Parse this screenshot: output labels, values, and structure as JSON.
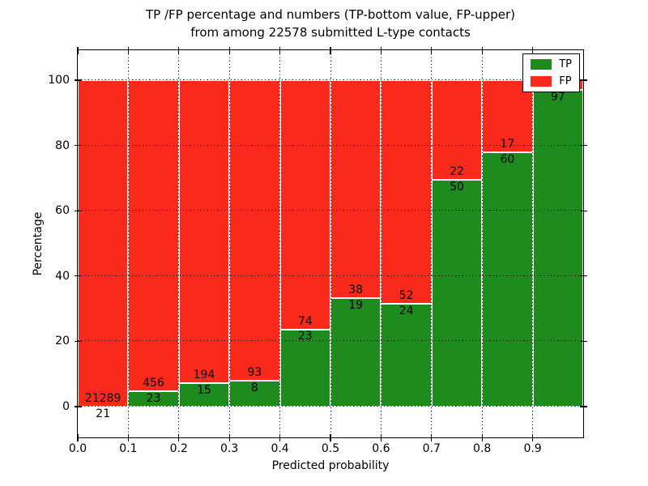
{
  "title": {
    "line1": "TP /FP percentage and numbers (TP-bottom value, FP-upper)",
    "line2": "from among 22578 submitted L-type contacts"
  },
  "colors": {
    "tp": "#1e8b1e",
    "fp": "#f92a1c",
    "grid": "#000000",
    "bar_edge": "#ffffff"
  },
  "chart_data": {
    "type": "bar",
    "stacked": true,
    "unit": "percent of each probability bin, TP+FP stacked to 100%",
    "title": "TP /FP percentage and numbers (TP-bottom value, FP-upper) from among 22578 submitted L-type contacts",
    "total_submitted": 22578,
    "xlabel": "Predicted probability",
    "ylabel": "Percentage",
    "xlim": [
      0.0,
      1.0
    ],
    "ylim": [
      -9.4,
      109.3
    ],
    "grid": true,
    "x_tick_labels": [
      "0.0",
      "0.1",
      "0.2",
      "0.3",
      "0.4",
      "0.5",
      "0.6",
      "0.7",
      "0.8",
      "0.9"
    ],
    "y_ticks": [
      0,
      20,
      40,
      60,
      80,
      100
    ],
    "legend": {
      "position": "upper right",
      "entries": [
        {
          "label": "TP",
          "color": "#1e8b1e"
        },
        {
          "label": "FP",
          "color": "#f92a1c"
        }
      ]
    },
    "bars": [
      {
        "bin": "0.0-0.1",
        "tp_count": 21,
        "fp_count": 21289,
        "tp_percent": 0.1,
        "fp_percent": 99.9,
        "tp_label": "21",
        "fp_label": "21289"
      },
      {
        "bin": "0.1-0.2",
        "tp_count": 23,
        "fp_count": 456,
        "tp_percent": 4.8,
        "fp_percent": 95.2,
        "tp_label": "23",
        "fp_label": "456"
      },
      {
        "bin": "0.2-0.3",
        "tp_count": 15,
        "fp_count": 194,
        "tp_percent": 7.2,
        "fp_percent": 92.8,
        "tp_label": "15",
        "fp_label": "194"
      },
      {
        "bin": "0.3-0.4",
        "tp_count": 8,
        "fp_count": 93,
        "tp_percent": 7.9,
        "fp_percent": 92.1,
        "tp_label": "8",
        "fp_label": "93"
      },
      {
        "bin": "0.4-0.5",
        "tp_count": 23,
        "fp_count": 74,
        "tp_percent": 23.7,
        "fp_percent": 76.3,
        "tp_label": "23",
        "fp_label": "74"
      },
      {
        "bin": "0.5-0.6",
        "tp_count": 19,
        "fp_count": 38,
        "tp_percent": 33.3,
        "fp_percent": 66.7,
        "tp_label": "19",
        "fp_label": "38"
      },
      {
        "bin": "0.6-0.7",
        "tp_count": 24,
        "fp_count": 52,
        "tp_percent": 31.6,
        "fp_percent": 68.4,
        "tp_label": "24",
        "fp_label": "52"
      },
      {
        "bin": "0.7-0.8",
        "tp_count": 50,
        "fp_count": 22,
        "tp_percent": 69.4,
        "fp_percent": 30.6,
        "tp_label": "50",
        "fp_label": "22"
      },
      {
        "bin": "0.8-0.9",
        "tp_count": 60,
        "fp_count": 17,
        "tp_percent": 77.9,
        "fp_percent": 22.1,
        "tp_label": "60",
        "fp_label": "17"
      },
      {
        "bin": "0.9-1.0",
        "tp_count": 97,
        "fp_count": null,
        "tp_percent": 97.0,
        "fp_percent": 3.0,
        "tp_label": "97",
        "fp_label": ""
      }
    ]
  }
}
